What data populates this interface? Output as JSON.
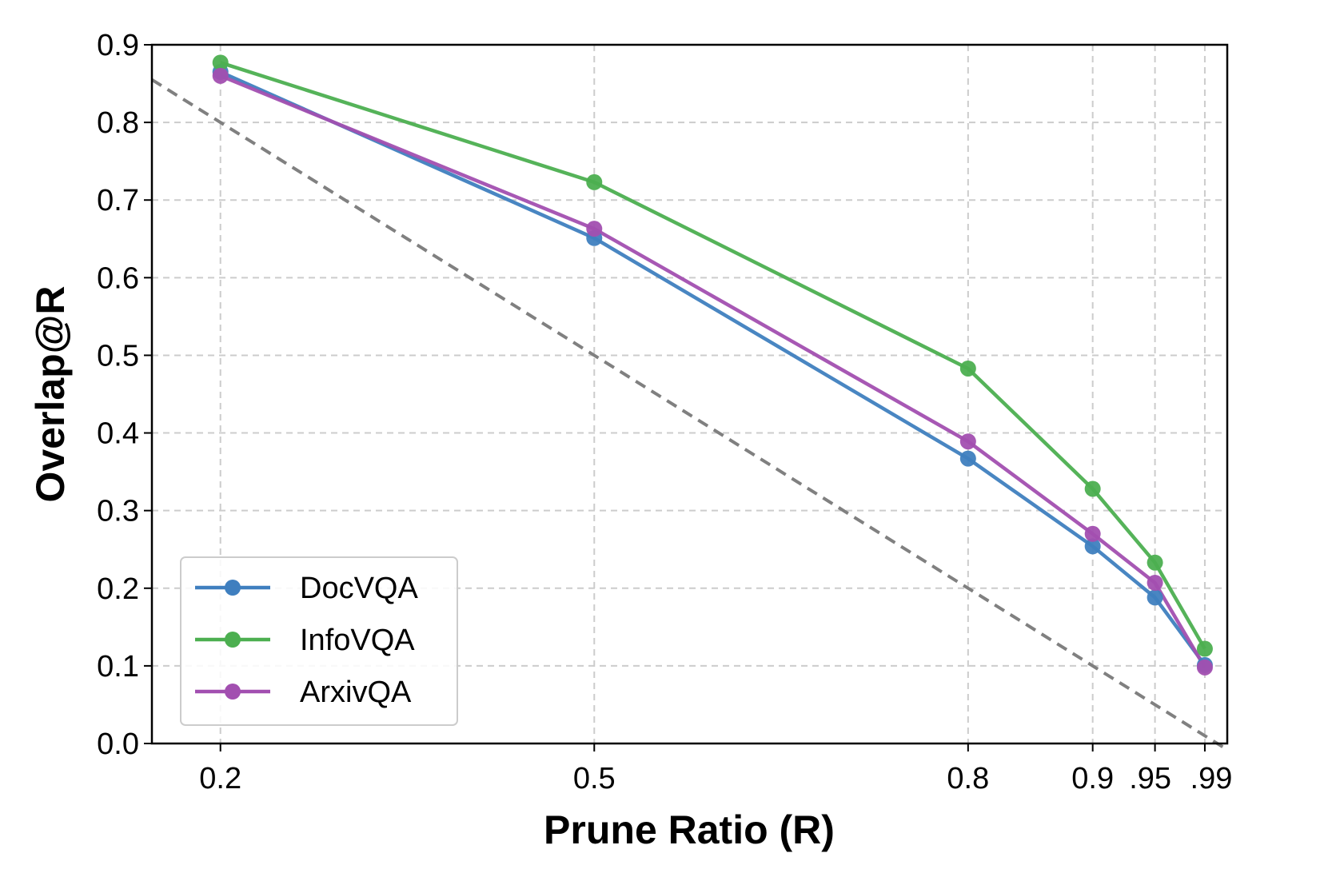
{
  "chart_data": {
    "type": "line",
    "xlabel": "Prune Ratio (R)",
    "ylabel": "Overlap@R",
    "x": [
      0.2,
      0.5,
      0.8,
      0.9,
      0.95,
      0.99
    ],
    "xticks": [
      0.2,
      0.5,
      0.8,
      0.9,
      0.95,
      0.99
    ],
    "xtick_labels": [
      "0.2",
      "0.5",
      "0.8",
      "0.9",
      ".95",
      ".99"
    ],
    "xlim": [
      0.145,
      1.008
    ],
    "ylim": [
      0.0,
      0.9
    ],
    "yticks": [
      0.0,
      0.1,
      0.2,
      0.3,
      0.4,
      0.5,
      0.6,
      0.7,
      0.8,
      0.9
    ],
    "ytick_labels": [
      "0.0",
      "0.1",
      "0.2",
      "0.3",
      "0.4",
      "0.5",
      "0.6",
      "0.7",
      "0.8",
      "0.9"
    ],
    "grid": true,
    "legend_position": "lower-left",
    "series": [
      {
        "name": "DocVQA",
        "color": "#3f7fbf",
        "values": [
          0.865,
          0.651,
          0.367,
          0.254,
          0.188,
          0.101
        ]
      },
      {
        "name": "InfoVQA",
        "color": "#4caf50",
        "values": [
          0.877,
          0.723,
          0.483,
          0.328,
          0.233,
          0.122
        ]
      },
      {
        "name": "ArxivQA",
        "color": "#a24fb0",
        "values": [
          0.86,
          0.663,
          0.389,
          0.27,
          0.207,
          0.098
        ]
      }
    ],
    "reference_line": {
      "color": "#808080",
      "style": "dashed",
      "x": [
        0.145,
        1.008
      ],
      "y": [
        0.855,
        -0.008
      ]
    }
  }
}
